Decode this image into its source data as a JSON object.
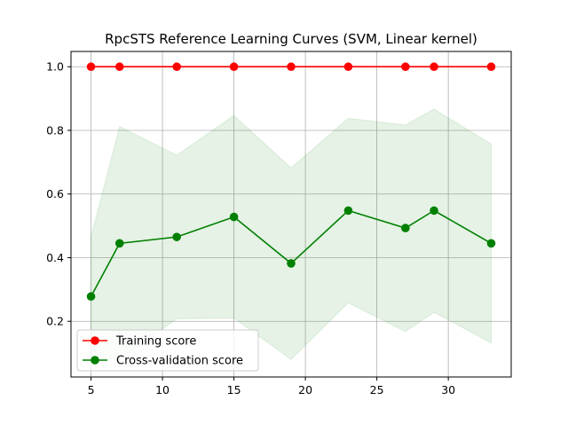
{
  "chart_data": {
    "type": "line",
    "title": "RpcSTS Reference Learning Curves (SVM, Linear kernel)",
    "xlabel": "",
    "ylabel": "",
    "xlim": [
      3.6,
      34.4
    ],
    "ylim": [
      0.025,
      1.048
    ],
    "xticks": [
      5,
      10,
      15,
      20,
      25,
      30
    ],
    "yticks": [
      0.2,
      0.4,
      0.6,
      0.8,
      1.0
    ],
    "xtick_labels": [
      "5",
      "10",
      "15",
      "20",
      "25",
      "30"
    ],
    "ytick_labels": [
      "0.2",
      "0.4",
      "0.6",
      "0.8",
      "1.0"
    ],
    "grid": true,
    "legend_position": "lower-left",
    "x": [
      5,
      7,
      11,
      15,
      19,
      23,
      27,
      29,
      33
    ],
    "series": [
      {
        "name": "Training score",
        "color": "#ff0000",
        "marker": "circle",
        "values": [
          1.0,
          1.0,
          1.0,
          1.0,
          1.0,
          1.0,
          1.0,
          1.0,
          1.0
        ],
        "band_upper": [
          1.0,
          1.0,
          1.0,
          1.0,
          1.0,
          1.0,
          1.0,
          1.0,
          1.0
        ],
        "band_lower": [
          1.0,
          1.0,
          1.0,
          1.0,
          1.0,
          1.0,
          1.0,
          1.0,
          1.0
        ]
      },
      {
        "name": "Cross-validation score",
        "color": "#008000",
        "band_color": "#008000",
        "marker": "circle",
        "values": [
          0.278,
          0.445,
          0.465,
          0.528,
          0.382,
          0.548,
          0.493,
          0.548,
          0.445
        ],
        "band_upper": [
          0.465,
          0.812,
          0.722,
          0.847,
          0.682,
          0.838,
          0.817,
          0.867,
          0.757
        ],
        "band_lower": [
          0.09,
          0.078,
          0.208,
          0.21,
          0.08,
          0.258,
          0.168,
          0.228,
          0.132
        ]
      }
    ]
  }
}
